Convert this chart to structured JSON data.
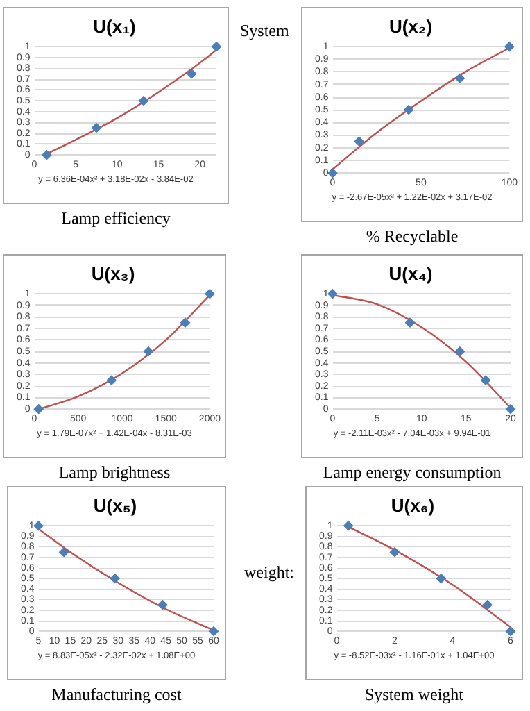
{
  "chart_data": [
    {
      "type": "scatter",
      "title": "U(x₁)",
      "xlabel": "Lamp efficiency",
      "annotations": [
        "y = 6.36E-04x² + 3.18E-02x - 3.84E-02"
      ],
      "grid": "y",
      "xlim": [
        0,
        22
      ],
      "xticks": [
        0,
        5,
        10,
        15,
        20
      ],
      "ylim": [
        0,
        1
      ],
      "yticks": [
        0,
        0.1,
        0.2,
        0.3,
        0.4,
        0.5,
        0.6,
        0.7,
        0.8,
        0.9,
        1
      ],
      "series": [
        {
          "type": "scatter",
          "marker": "diamond",
          "color": "#4a7ebb",
          "x": [
            1.5,
            7.5,
            13.2,
            19,
            22
          ],
          "values": [
            0,
            0.25,
            0.5,
            0.75,
            1
          ]
        },
        {
          "type": "line",
          "marker": "none",
          "color": "#c0504d",
          "x": [
            1.5,
            5,
            10,
            15,
            20,
            22
          ],
          "values": [
            0.01,
            0.14,
            0.34,
            0.58,
            0.85,
            0.97
          ]
        }
      ]
    },
    {
      "type": "scatter",
      "title": "U(x₂)",
      "xlabel": "% Recyclable",
      "annotations": [
        "y = -2.67E-05x² + 1.22E-02x + 3.17E-02",
        "System"
      ],
      "grid": "y",
      "xlim": [
        0,
        100
      ],
      "xticks": [
        0,
        50,
        100
      ],
      "ylim": [
        0,
        1
      ],
      "yticks": [
        0,
        0.1,
        0.2,
        0.3,
        0.4,
        0.5,
        0.6,
        0.7,
        0.8,
        0.9,
        1
      ],
      "series": [
        {
          "type": "scatter",
          "marker": "diamond",
          "color": "#4a7ebb",
          "x": [
            0,
            15,
            43,
            72,
            100
          ],
          "values": [
            0,
            0.25,
            0.5,
            0.75,
            1
          ]
        },
        {
          "type": "line",
          "marker": "none",
          "color": "#c0504d",
          "x": [
            0,
            25,
            50,
            75,
            100
          ],
          "values": [
            0.03,
            0.32,
            0.57,
            0.8,
            0.99
          ]
        }
      ]
    },
    {
      "type": "scatter",
      "title": "U(x₃)",
      "xlabel": "Lamp brightness",
      "annotations": [
        "y = 1.79E-07x² + 1.42E-04x - 8.31E-03"
      ],
      "grid": "y",
      "xlim": [
        0,
        2000
      ],
      "xticks": [
        0,
        500,
        1000,
        1500,
        2000
      ],
      "ylim": [
        0,
        1
      ],
      "yticks": [
        0,
        0.1,
        0.2,
        0.3,
        0.4,
        0.5,
        0.6,
        0.7,
        0.8,
        0.9,
        1
      ],
      "series": [
        {
          "type": "scatter",
          "marker": "diamond",
          "color": "#4a7ebb",
          "x": [
            50,
            880,
            1300,
            1720,
            2000
          ],
          "values": [
            0,
            0.25,
            0.5,
            0.75,
            1
          ]
        },
        {
          "type": "line",
          "marker": "none",
          "color": "#c0504d",
          "x": [
            50,
            500,
            1000,
            1500,
            2000
          ],
          "values": [
            0,
            0.11,
            0.31,
            0.6,
            0.99
          ]
        }
      ]
    },
    {
      "type": "scatter",
      "title": "U(x₄)",
      "xlabel": "Lamp energy consumption",
      "annotations": [
        "y = -2.11E-03x² - 7.04E-03x + 9.94E-01"
      ],
      "grid": "y",
      "xlim": [
        0,
        20
      ],
      "xticks": [
        0,
        5,
        10,
        15,
        20
      ],
      "ylim": [
        0,
        1
      ],
      "yticks": [
        0,
        0.1,
        0.2,
        0.3,
        0.4,
        0.5,
        0.6,
        0.7,
        0.8,
        0.9,
        1
      ],
      "series": [
        {
          "type": "scatter",
          "marker": "diamond",
          "color": "#4a7ebb",
          "x": [
            0,
            8.7,
            14.3,
            17.2,
            20
          ],
          "values": [
            1,
            0.75,
            0.5,
            0.25,
            0
          ]
        },
        {
          "type": "line",
          "marker": "none",
          "color": "#c0504d",
          "x": [
            0,
            5,
            10,
            15,
            20
          ],
          "values": [
            0.99,
            0.91,
            0.71,
            0.41,
            0.01
          ]
        }
      ]
    },
    {
      "type": "scatter",
      "title": "U(x₅)",
      "xlabel": "Manufacturing cost",
      "annotations": [
        "y = 8.83E-05x² - 2.32E-02x + 1.08E+00"
      ],
      "grid": "y",
      "xlim": [
        5,
        60
      ],
      "xticks": [
        5,
        10,
        15,
        20,
        25,
        30,
        35,
        40,
        45,
        50,
        55,
        60
      ],
      "ylim": [
        0,
        1
      ],
      "yticks": [
        0,
        0.1,
        0.2,
        0.3,
        0.4,
        0.5,
        0.6,
        0.7,
        0.8,
        0.9,
        1
      ],
      "series": [
        {
          "type": "scatter",
          "marker": "diamond",
          "color": "#4a7ebb",
          "x": [
            5,
            13,
            29,
            44,
            60
          ],
          "values": [
            1,
            0.75,
            0.5,
            0.25,
            0
          ]
        },
        {
          "type": "line",
          "marker": "none",
          "color": "#c0504d",
          "x": [
            5,
            15,
            30,
            45,
            60
          ],
          "values": [
            0.97,
            0.75,
            0.46,
            0.21,
            0.01
          ]
        }
      ]
    },
    {
      "type": "scatter",
      "title": "U(x₆)",
      "xlabel": "System weight",
      "annotations": [
        "y = -8.52E-03x² - 1.16E-01x + 1.04E+00",
        "weight:"
      ],
      "grid": "y",
      "xlim": [
        0,
        6
      ],
      "xticks": [
        0,
        2,
        4,
        6
      ],
      "ylim": [
        0,
        1
      ],
      "yticks": [
        0,
        0.1,
        0.2,
        0.3,
        0.4,
        0.5,
        0.6,
        0.7,
        0.8,
        0.9,
        1
      ],
      "series": [
        {
          "type": "scatter",
          "marker": "diamond",
          "color": "#4a7ebb",
          "x": [
            0.4,
            2,
            3.6,
            5.2,
            6
          ],
          "values": [
            1,
            0.75,
            0.5,
            0.25,
            0
          ]
        },
        {
          "type": "line",
          "marker": "none",
          "color": "#c0504d",
          "x": [
            0.4,
            2,
            4,
            6
          ],
          "values": [
            0.99,
            0.77,
            0.44,
            0.04
          ]
        }
      ]
    }
  ]
}
